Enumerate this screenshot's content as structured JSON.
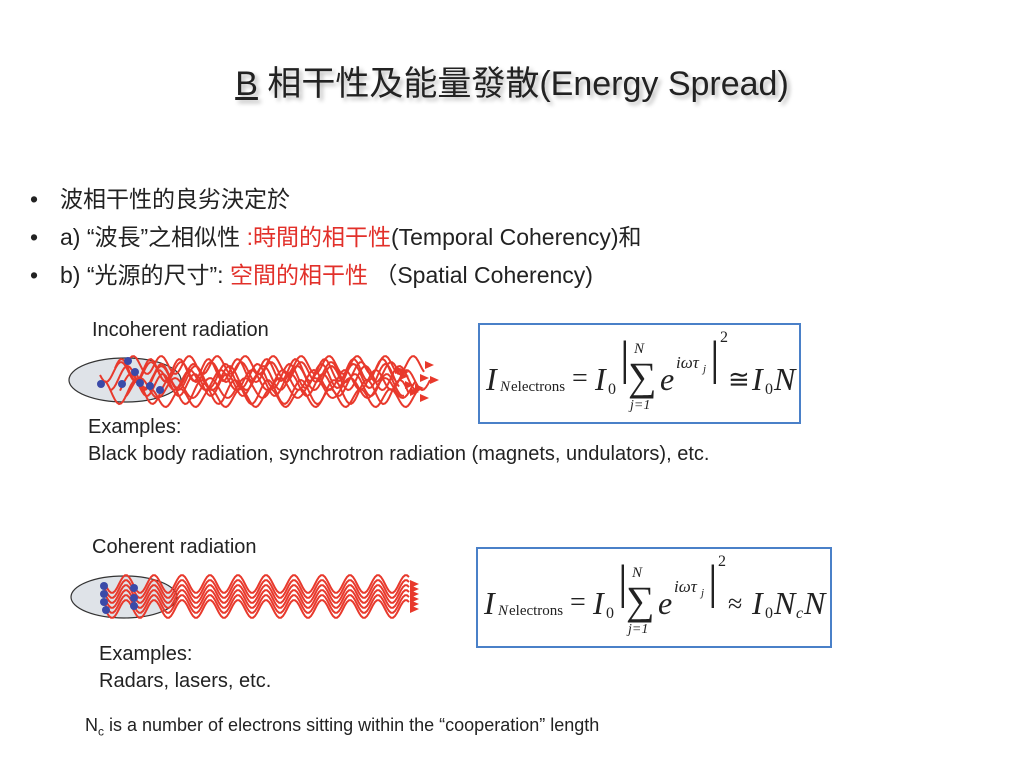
{
  "title": {
    "prefix": "B",
    "text": " 相干性及能量發散(Energy Spread)"
  },
  "bullets": [
    {
      "marker": "•",
      "parts": [
        "波相干性的良劣決定於"
      ]
    },
    {
      "marker": "•",
      "parts": [
        "a) “波長”之相似性 ",
        ":時間的相干性",
        "(Temporal Coherency)和"
      ]
    },
    {
      "marker": "•",
      "parts": [
        "b) “光源的尺寸”: ",
        "空間的相干性",
        "  （Spatial Coherency)"
      ]
    }
  ],
  "incoherent": {
    "label": "Incoherent radiation",
    "examples_label": "Examples:",
    "examples": "Black body radiation, synchrotron radiation (magnets, undulators), etc.",
    "formula": {
      "lhs": "I",
      "lhs_sub_var": "N",
      "lhs_sub": "electrons",
      "eq": "=",
      "i0": "I",
      "zero": "0",
      "sum_top": "N",
      "sum_bottom": "j=1",
      "exp": "iωτ",
      "exp_sub": "j",
      "power": "2",
      "rel": "≅",
      "rhs": "I",
      "rhs_sub": "0",
      "rhs_tail": "N"
    }
  },
  "coherent": {
    "label": "Coherent radiation",
    "examples_label": "Examples:",
    "examples": "Radars, lasers,  etc.",
    "formula": {
      "lhs": "I",
      "lhs_sub_var": "N",
      "lhs_sub": "electrons",
      "eq": "=",
      "i0": "I",
      "zero": "0",
      "sum_top": "N",
      "sum_bottom": "j=1",
      "exp": "iωτ",
      "exp_sub": "j",
      "power": "2",
      "rel": "≈",
      "rhs": "I",
      "rhs_sub": "0",
      "rhs_tail": "N",
      "rhs_nc": "N",
      "rhs_nc_sub": "c"
    }
  },
  "footnote": {
    "n": "N",
    "sub": "c",
    "text": " is a number of electrons sitting within the “cooperation” length"
  },
  "colors": {
    "wave": "#e8392c",
    "electron": "#3b4aa8",
    "box_border": "#4a80c8",
    "highlight": "#e2302a"
  }
}
